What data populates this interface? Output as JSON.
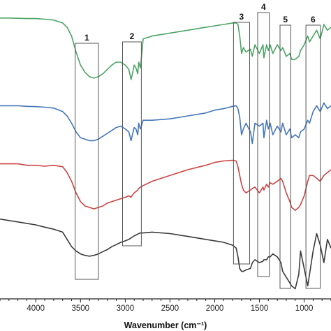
{
  "chart_data": {
    "type": "line",
    "title": "",
    "xlabel": "Wavenumber (cm⁻¹)",
    "ylabel": "",
    "x_reversed": true,
    "xlim": [
      4400,
      700
    ],
    "ylim": [
      0,
      1
    ],
    "x_ticks": [
      4000,
      3500,
      3000,
      2500,
      2000,
      1500,
      1000
    ],
    "x_tick_labels": [
      "4000",
      "3500",
      "3000",
      "2500",
      "2000",
      "1500",
      "1000"
    ],
    "grid": false,
    "legend": "none",
    "series": [
      {
        "color": "#4aa564",
        "x": [
          4400,
          4300,
          4200,
          4100,
          4000,
          3900,
          3800,
          3700,
          3650,
          3600,
          3550,
          3500,
          3450,
          3400,
          3350,
          3300,
          3250,
          3200,
          3150,
          3100,
          3050,
          3000,
          2960,
          2935,
          2920,
          2900,
          2880,
          2860,
          2850,
          2830,
          2800,
          2700,
          2500,
          2300,
          2100,
          2000,
          1900,
          1800,
          1760,
          1740,
          1720,
          1700,
          1680,
          1650,
          1600,
          1580,
          1550,
          1500,
          1460,
          1450,
          1420,
          1400,
          1380,
          1350,
          1300,
          1260,
          1240,
          1200,
          1160,
          1140,
          1100,
          1060,
          1040,
          1000,
          960,
          940,
          900,
          860,
          820,
          780,
          740,
          700
        ],
        "y": [
          0.962,
          0.962,
          0.961,
          0.96,
          0.96,
          0.958,
          0.955,
          0.945,
          0.93,
          0.9,
          0.845,
          0.8,
          0.775,
          0.76,
          0.755,
          0.76,
          0.77,
          0.785,
          0.8,
          0.81,
          0.81,
          0.8,
          0.785,
          0.75,
          0.77,
          0.8,
          0.79,
          0.77,
          0.81,
          0.79,
          0.89,
          0.9,
          0.91,
          0.92,
          0.93,
          0.935,
          0.94,
          0.945,
          0.945,
          0.94,
          0.9,
          0.84,
          0.86,
          0.845,
          0.855,
          0.83,
          0.87,
          0.84,
          0.87,
          0.825,
          0.87,
          0.85,
          0.87,
          0.84,
          0.87,
          0.85,
          0.86,
          0.83,
          0.84,
          0.82,
          0.82,
          0.83,
          0.85,
          0.87,
          0.9,
          0.88,
          0.9,
          0.92,
          0.89,
          0.94,
          0.92,
          0.93
        ]
      },
      {
        "color": "#4477bb",
        "x": [
          4400,
          4300,
          4200,
          4100,
          4000,
          3900,
          3800,
          3700,
          3650,
          3600,
          3550,
          3500,
          3450,
          3400,
          3350,
          3300,
          3250,
          3200,
          3150,
          3100,
          3050,
          3000,
          2960,
          2935,
          2920,
          2900,
          2880,
          2860,
          2850,
          2830,
          2800,
          2700,
          2500,
          2300,
          2100,
          2000,
          1900,
          1800,
          1760,
          1740,
          1720,
          1700,
          1680,
          1650,
          1600,
          1580,
          1550,
          1500,
          1460,
          1450,
          1420,
          1400,
          1380,
          1350,
          1300,
          1260,
          1240,
          1200,
          1160,
          1140,
          1100,
          1060,
          1040,
          1000,
          960,
          940,
          900,
          860,
          820,
          780,
          740,
          700
        ],
        "y": [
          0.66,
          0.66,
          0.66,
          0.658,
          0.657,
          0.655,
          0.652,
          0.64,
          0.625,
          0.6,
          0.57,
          0.55,
          0.545,
          0.54,
          0.54,
          0.545,
          0.555,
          0.565,
          0.575,
          0.585,
          0.59,
          0.58,
          0.57,
          0.54,
          0.56,
          0.585,
          0.58,
          0.56,
          0.6,
          0.58,
          0.61,
          0.61,
          0.615,
          0.625,
          0.635,
          0.645,
          0.65,
          0.658,
          0.66,
          0.65,
          0.62,
          0.56,
          0.58,
          0.6,
          0.57,
          0.53,
          0.6,
          0.59,
          0.6,
          0.55,
          0.61,
          0.58,
          0.6,
          0.56,
          0.59,
          0.57,
          0.6,
          0.56,
          0.58,
          0.55,
          0.56,
          0.55,
          0.57,
          0.58,
          0.61,
          0.6,
          0.64,
          0.66,
          0.64,
          0.67,
          0.65,
          0.66
        ]
      },
      {
        "color": "#cc4444",
        "x": [
          4400,
          4300,
          4200,
          4100,
          4000,
          3900,
          3800,
          3700,
          3650,
          3600,
          3550,
          3500,
          3450,
          3400,
          3350,
          3300,
          3250,
          3200,
          3150,
          3100,
          3050,
          3000,
          2960,
          2935,
          2920,
          2900,
          2880,
          2860,
          2850,
          2830,
          2800,
          2700,
          2500,
          2300,
          2100,
          2000,
          1900,
          1800,
          1760,
          1740,
          1720,
          1700,
          1680,
          1650,
          1600,
          1580,
          1550,
          1500,
          1460,
          1450,
          1420,
          1400,
          1380,
          1350,
          1300,
          1260,
          1240,
          1200,
          1160,
          1140,
          1100,
          1060,
          1040,
          1000,
          960,
          940,
          900,
          860,
          820,
          780,
          740,
          700
        ],
        "y": [
          0.46,
          0.46,
          0.46,
          0.455,
          0.455,
          0.452,
          0.455,
          0.45,
          0.43,
          0.4,
          0.36,
          0.33,
          0.315,
          0.31,
          0.305,
          0.31,
          0.315,
          0.325,
          0.33,
          0.335,
          0.34,
          0.345,
          0.35,
          0.345,
          0.352,
          0.36,
          0.365,
          0.37,
          0.375,
          0.38,
          0.385,
          0.4,
          0.42,
          0.44,
          0.455,
          0.465,
          0.47,
          0.472,
          0.47,
          0.45,
          0.42,
          0.39,
          0.37,
          0.36,
          0.37,
          0.375,
          0.38,
          0.36,
          0.38,
          0.37,
          0.39,
          0.38,
          0.395,
          0.39,
          0.4,
          0.41,
          0.4,
          0.36,
          0.33,
          0.31,
          0.3,
          0.31,
          0.32,
          0.35,
          0.4,
          0.42,
          0.42,
          0.41,
          0.4,
          0.42,
          0.43,
          0.44
        ]
      },
      {
        "color": "#3a3a3a",
        "x": [
          4400,
          4300,
          4200,
          4100,
          4000,
          3900,
          3800,
          3700,
          3650,
          3600,
          3550,
          3500,
          3450,
          3400,
          3350,
          3300,
          3250,
          3200,
          3150,
          3100,
          3050,
          3000,
          2960,
          2935,
          2920,
          2900,
          2880,
          2860,
          2850,
          2830,
          2800,
          2700,
          2500,
          2300,
          2100,
          2000,
          1900,
          1800,
          1760,
          1740,
          1720,
          1700,
          1680,
          1650,
          1600,
          1580,
          1550,
          1500,
          1460,
          1450,
          1420,
          1400,
          1380,
          1350,
          1300,
          1260,
          1240,
          1200,
          1160,
          1140,
          1100,
          1060,
          1040,
          1000,
          960,
          940,
          900,
          860,
          820,
          780,
          740,
          700
        ],
        "y": [
          0.27,
          0.265,
          0.26,
          0.255,
          0.25,
          0.242,
          0.235,
          0.225,
          0.2,
          0.175,
          0.16,
          0.15,
          0.145,
          0.142,
          0.145,
          0.15,
          0.158,
          0.165,
          0.175,
          0.182,
          0.19,
          0.195,
          0.2,
          0.205,
          0.208,
          0.212,
          0.215,
          0.218,
          0.22,
          0.222,
          0.222,
          0.225,
          0.22,
          0.21,
          0.2,
          0.195,
          0.19,
          0.18,
          0.17,
          0.14,
          0.1,
          0.09,
          0.09,
          0.095,
          0.1,
          0.12,
          0.13,
          0.12,
          0.125,
          0.13,
          0.13,
          0.14,
          0.14,
          0.15,
          0.14,
          0.12,
          0.09,
          0.07,
          0.05,
          0.04,
          0.03,
          0.08,
          0.16,
          0.1,
          0.04,
          0.08,
          0.16,
          0.22,
          0.18,
          0.12,
          0.2,
          0.17
        ]
      }
    ],
    "highlight_boxes": [
      {
        "label": "1",
        "x_from": 3560,
        "x_to": 3300
      },
      {
        "label": "2",
        "x_from": 3030,
        "x_to": 2820
      },
      {
        "label": "3",
        "x_from": 1790,
        "x_to": 1610
      },
      {
        "label": "4",
        "x_from": 1520,
        "x_to": 1390
      },
      {
        "label": "5",
        "x_from": 1270,
        "x_to": 1150
      },
      {
        "label": "6",
        "x_from": 980,
        "x_to": 820
      }
    ]
  }
}
